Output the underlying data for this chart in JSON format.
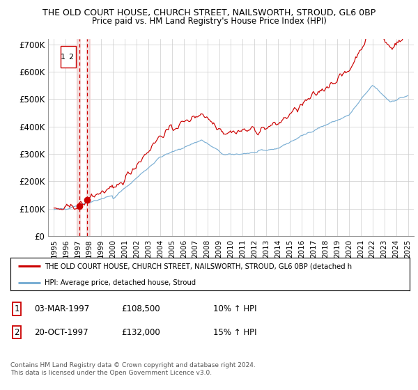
{
  "title": "THE OLD COURT HOUSE, CHURCH STREET, NAILSWORTH, STROUD, GL6 0BP",
  "subtitle": "Price paid vs. HM Land Registry's House Price Index (HPI)",
  "legend_line1": "THE OLD COURT HOUSE, CHURCH STREET, NAILSWORTH, STROUD, GL6 0BP (detached h",
  "legend_line2": "HPI: Average price, detached house, Stroud",
  "table_rows": [
    {
      "num": "1",
      "date": "03-MAR-1997",
      "price": "£108,500",
      "hpi": "10% ↑ HPI"
    },
    {
      "num": "2",
      "date": "20-OCT-1997",
      "price": "£132,000",
      "hpi": "15% ↑ HPI"
    }
  ],
  "footnote1": "Contains HM Land Registry data © Crown copyright and database right 2024.",
  "footnote2": "This data is licensed under the Open Government Licence v3.0.",
  "sale1_x": 1997.17,
  "sale1_y": 108500,
  "sale2_x": 1997.8,
  "sale2_y": 132000,
  "hpi_color": "#7bafd4",
  "price_color": "#cc0000",
  "vline_color": "#cc0000",
  "vshade_color": "#f2d0d0",
  "grid_color": "#cccccc",
  "bg_color": "#ffffff",
  "ylim": [
    0,
    720000
  ],
  "yticks": [
    0,
    100000,
    200000,
    300000,
    400000,
    500000,
    600000,
    700000
  ],
  "ytick_labels": [
    "£0",
    "£100K",
    "£200K",
    "£300K",
    "£400K",
    "£500K",
    "£600K",
    "£700K"
  ],
  "xlim_start": 1994.5,
  "xlim_end": 2025.5,
  "xtick_years": [
    1995,
    1996,
    1997,
    1998,
    1999,
    2000,
    2001,
    2002,
    2003,
    2004,
    2005,
    2006,
    2007,
    2008,
    2009,
    2010,
    2011,
    2012,
    2013,
    2014,
    2015,
    2016,
    2017,
    2018,
    2019,
    2020,
    2021,
    2022,
    2023,
    2024,
    2025
  ]
}
